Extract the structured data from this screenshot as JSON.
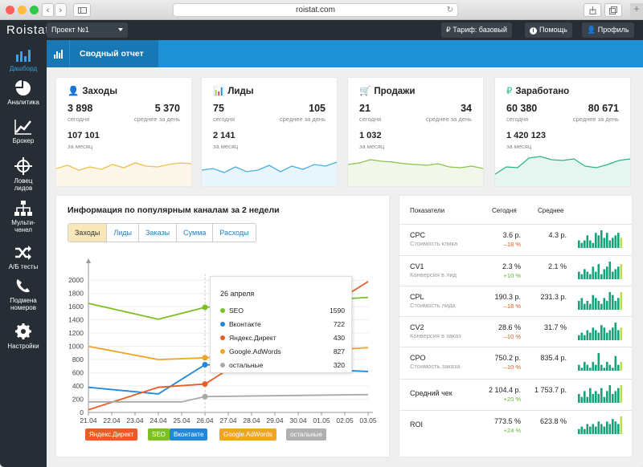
{
  "browser": {
    "url": "roistat.com"
  },
  "topbar": {
    "logo": "Roistat",
    "project": "Проект №1",
    "tariff": "Тариф: базовый",
    "help": "Помощь",
    "profile": "Профиль"
  },
  "sidebar": [
    {
      "label": "Дашборд",
      "icon": "dashboard-icon"
    },
    {
      "label": "Аналитика",
      "icon": "pie-chart-icon"
    },
    {
      "label": "Брокер",
      "icon": "trend-icon"
    },
    {
      "label": "Ловец лидов",
      "icon": "crosshair-icon"
    },
    {
      "label": "Мульти-ченел",
      "icon": "network-icon"
    },
    {
      "label": "А/Б тесты",
      "icon": "shuffle-icon"
    },
    {
      "label": "Подмена номеров",
      "icon": "phone-icon"
    },
    {
      "label": "Настройки",
      "icon": "gear-icon"
    }
  ],
  "banner": {
    "title": "Сводный отчет"
  },
  "kpis": [
    {
      "title": "Заходы",
      "icon": "user-icon",
      "color": "#f0c050",
      "today": "3 898",
      "today_label": "сегодня",
      "avg": "5 370",
      "avg_label": "среднее за день",
      "month": "107 101",
      "month_label": "за месяц",
      "spark": [
        22,
        26,
        20,
        24,
        21,
        27,
        23,
        29,
        25,
        24,
        27,
        29,
        28
      ]
    },
    {
      "title": "Лиды",
      "icon": "bar-icon",
      "color": "#4aaee6",
      "today": "75",
      "today_label": "сегодня",
      "avg": "105",
      "avg_label": "среднее за день",
      "month": "2 141",
      "month_label": "за месяц",
      "spark": [
        20,
        22,
        17,
        24,
        18,
        20,
        26,
        18,
        25,
        21,
        27,
        25,
        30
      ]
    },
    {
      "title": "Продажи",
      "icon": "cart-icon",
      "color": "#8bc34a",
      "today": "21",
      "today_label": "сегодня",
      "avg": "34",
      "avg_label": "среднее за день",
      "month": "1 032",
      "month_label": "за месяц",
      "spark": [
        27,
        29,
        33,
        31,
        30,
        28,
        27,
        26,
        28,
        24,
        23,
        25,
        22
      ]
    },
    {
      "title": "Заработано",
      "icon": "ruble-icon",
      "color": "#2bb58a",
      "today": "60 380",
      "today_label": "сегодня",
      "avg": "80 671",
      "avg_label": "среднее за день",
      "month": "1 420 123",
      "month_label": "за месяц",
      "spark": [
        15,
        24,
        23,
        35,
        37,
        33,
        32,
        34,
        25,
        23,
        27,
        32,
        34
      ]
    }
  ],
  "channels": {
    "title": "Информация по популярным каналам за 2 недели",
    "tabs": [
      "Заходы",
      "Лиды",
      "Заказы",
      "Сумма",
      "Расходы"
    ],
    "active_tab": 0,
    "tooltip": {
      "date": "26 апреля",
      "rows": [
        {
          "name": "SEO",
          "value": "1590",
          "color": "#7cc023"
        },
        {
          "name": "Вконтакте",
          "value": "722",
          "color": "#2288d8"
        },
        {
          "name": "Яндекс.Директ",
          "value": "430",
          "color": "#e95d24"
        },
        {
          "name": "Google.AdWords",
          "value": "827",
          "color": "#f0a426"
        },
        {
          "name": "остальные",
          "value": "320",
          "color": "#a8a8a8"
        }
      ]
    },
    "legend": [
      {
        "name": "Яндекс.Директ",
        "color": "#e95d24"
      },
      {
        "name": "SEO",
        "color": "#7cc023"
      },
      {
        "name": "Вконтакте",
        "color": "#2288d8"
      },
      {
        "name": "Google.AdWords",
        "color": "#f0a426"
      },
      {
        "name": "остальные",
        "color": "#b0b0b0"
      }
    ]
  },
  "chart_data": {
    "type": "line",
    "x": [
      "21.04",
      "22.04",
      "23.04",
      "24.04",
      "25.04",
      "26.04",
      "27.04",
      "28.04",
      "29.04",
      "30.04",
      "01.05",
      "02.05",
      "03.05"
    ],
    "yticks": [
      0,
      200,
      400,
      600,
      800,
      1000,
      1200,
      1400,
      1600,
      1800,
      2000
    ],
    "ylim": [
      0,
      2100
    ],
    "series": [
      {
        "name": "SEO",
        "color": "#7cc023",
        "points": [
          [
            0,
            1650
          ],
          [
            3,
            1410
          ],
          [
            5,
            1590
          ],
          [
            12,
            1740
          ]
        ]
      },
      {
        "name": "Google.AdWords",
        "color": "#f0a426",
        "points": [
          [
            0,
            1000
          ],
          [
            3,
            800
          ],
          [
            5,
            827
          ],
          [
            12,
            980
          ]
        ]
      },
      {
        "name": "Вконтакте",
        "color": "#2288d8",
        "points": [
          [
            0,
            380
          ],
          [
            3,
            280
          ],
          [
            5,
            722
          ],
          [
            12,
            620
          ]
        ]
      },
      {
        "name": "Яндекс.Директ",
        "color": "#e95d24",
        "points": [
          [
            0,
            40
          ],
          [
            3,
            380
          ],
          [
            5,
            430
          ],
          [
            12,
            1980
          ]
        ]
      },
      {
        "name": "остальные",
        "color": "#a8a8a8",
        "points": [
          [
            0,
            160
          ],
          [
            4,
            160
          ],
          [
            5,
            240
          ],
          [
            12,
            270
          ]
        ]
      }
    ]
  },
  "metrics": {
    "headers": [
      "Показатели",
      "Сегодня",
      "Среднее"
    ],
    "rows": [
      {
        "name": "CPC",
        "sub": "Стоимость клика",
        "today": "3.6 р.",
        "delta": "–18 %",
        "delta_color": "#e85a1c",
        "avg": "4.3 р.",
        "bars": [
          3,
          2,
          3,
          5,
          3,
          2,
          6,
          5,
          7,
          4,
          6,
          3,
          4,
          5,
          6,
          4
        ],
        "last": "#b8e04e"
      },
      {
        "name": "CV1",
        "sub": "Конверсия в лид",
        "today": "2.3 %",
        "delta": "+10 %",
        "delta_color": "#5fb832",
        "avg": "2.1 %",
        "bars": [
          3,
          2,
          4,
          3,
          2,
          5,
          3,
          6,
          2,
          4,
          5,
          7,
          3,
          4,
          5,
          6
        ],
        "last": "#b8e04e"
      },
      {
        "name": "CPL",
        "sub": "Стоимость лида",
        "today": "190.3 р.",
        "delta": "–18 %",
        "delta_color": "#e85a1c",
        "avg": "231.3 р.",
        "bars": [
          3,
          4,
          2,
          3,
          2,
          5,
          4,
          3,
          2,
          4,
          3,
          6,
          5,
          3,
          4,
          6
        ],
        "last": "#b8e04e"
      },
      {
        "name": "CV2",
        "sub": "Конверсия в заказ",
        "today": "28.6 %",
        "delta": "–10 %",
        "delta_color": "#e85a1c",
        "avg": "31.7 %",
        "bars": [
          2,
          3,
          2,
          4,
          3,
          5,
          4,
          3,
          6,
          5,
          3,
          4,
          5,
          7,
          4,
          5
        ],
        "last": "#b8e04e"
      },
      {
        "name": "CPO",
        "sub": "Стоимость заказа",
        "today": "750.2 р.",
        "delta": "–10 %",
        "delta_color": "#e85a1c",
        "avg": "835.4 р.",
        "bars": [
          2,
          1,
          3,
          2,
          1,
          3,
          2,
          6,
          2,
          1,
          3,
          2,
          1,
          5,
          2,
          3
        ],
        "last": "#b8e04e"
      },
      {
        "name": "Средний чек",
        "sub": "",
        "today": "2 104.4 р.",
        "delta": "+20 %",
        "delta_color": "#5fb832",
        "avg": "1 753.7 р.",
        "bars": [
          3,
          2,
          4,
          2,
          5,
          3,
          4,
          3,
          5,
          2,
          4,
          6,
          3,
          4,
          5,
          6
        ],
        "last": "#b8e04e"
      },
      {
        "name": "ROI",
        "sub": "",
        "today": "773.5 %",
        "delta": "+24 %",
        "delta_color": "#5fb832",
        "avg": "623.8 %",
        "bars": [
          2,
          3,
          2,
          4,
          3,
          4,
          3,
          5,
          4,
          3,
          5,
          4,
          6,
          5,
          4,
          7
        ],
        "last": "#b8e04e"
      }
    ]
  }
}
